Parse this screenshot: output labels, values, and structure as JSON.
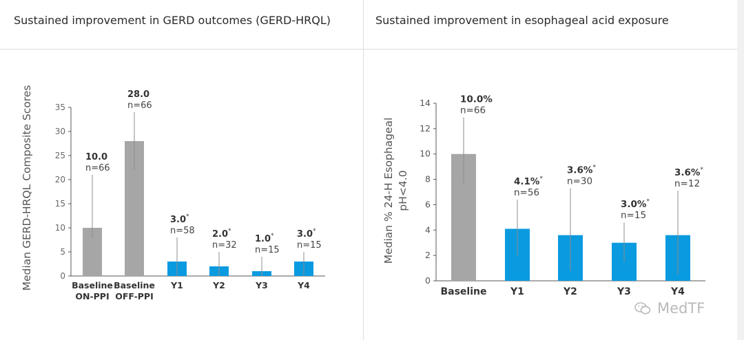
{
  "panels": {
    "left_title": "Sustained improvement in GERD outcomes (GERD-HRQL)",
    "right_title": "Sustained improvement in esophageal acid exposure"
  },
  "watermark": "MedTF",
  "chart_data": [
    {
      "type": "bar",
      "title": "Sustained improvement in GERD outcomes (GERD-HRQL)",
      "ylabel": "Median GERD-HRQL Composite Scores",
      "ylim": [
        0,
        35
      ],
      "yticks": [
        0,
        5,
        10,
        15,
        20,
        25,
        30,
        35
      ],
      "grid": false,
      "categories": [
        "Baseline ON-PPI",
        "Baseline OFF-PPI",
        "Y1",
        "Y2",
        "Y3",
        "Y4"
      ],
      "category_lines": [
        [
          "Baseline",
          "ON-PPI"
        ],
        [
          "Baseline",
          "OFF-PPI"
        ],
        [
          "Y1"
        ],
        [
          "Y2"
        ],
        [
          "Y3"
        ],
        [
          "Y4"
        ]
      ],
      "values": [
        10.0,
        28.0,
        3.0,
        2.0,
        1.0,
        3.0
      ],
      "value_labels": [
        "10.0",
        "28.0",
        "3.0",
        "2.0",
        "1.0",
        "3.0"
      ],
      "n_labels": [
        "n=66",
        "n=66",
        "n=58",
        "n=32",
        "n=15",
        "n=15"
      ],
      "significant": [
        false,
        false,
        true,
        true,
        true,
        true
      ],
      "significance_marker": "*",
      "range_low": [
        8,
        22,
        0,
        0,
        0,
        0
      ],
      "range_high": [
        21,
        34,
        8,
        5,
        4,
        5
      ],
      "bar_colors": [
        "#a6a6a6",
        "#a6a6a6",
        "#0a9ae0",
        "#0a9ae0",
        "#0a9ae0",
        "#0a9ae0"
      ]
    },
    {
      "type": "bar",
      "title": "Sustained improvement in esophageal acid exposure",
      "ylabel": "Median % 24-H Esophageal pH<4.0",
      "ylabel_lines": [
        "Median % 24-H Esophageal",
        "pH<4.0"
      ],
      "ylim": [
        0,
        14
      ],
      "yticks": [
        0,
        2,
        4,
        6,
        8,
        10,
        12,
        14
      ],
      "grid": false,
      "categories": [
        "Baseline",
        "Y1",
        "Y2",
        "Y3",
        "Y4"
      ],
      "category_lines": [
        [
          "Baseline"
        ],
        [
          "Y1"
        ],
        [
          "Y2"
        ],
        [
          "Y3"
        ],
        [
          "Y4"
        ]
      ],
      "values": [
        10.0,
        4.1,
        3.6,
        3.0,
        3.6
      ],
      "value_labels": [
        "10.0%",
        "4.1%",
        "3.6%",
        "3.0%",
        "3.6%"
      ],
      "n_labels": [
        "n=66",
        "n=56",
        "n=30",
        "n=15",
        "n=12"
      ],
      "significant": [
        false,
        true,
        true,
        true,
        true
      ],
      "significance_marker": "*",
      "range_low": [
        7.7,
        2.0,
        0.8,
        1.5,
        0.5
      ],
      "range_high": [
        12.9,
        6.4,
        7.3,
        4.6,
        7.1
      ],
      "bar_colors": [
        "#a6a6a6",
        "#0a9ae0",
        "#0a9ae0",
        "#0a9ae0",
        "#0a9ae0"
      ]
    }
  ]
}
